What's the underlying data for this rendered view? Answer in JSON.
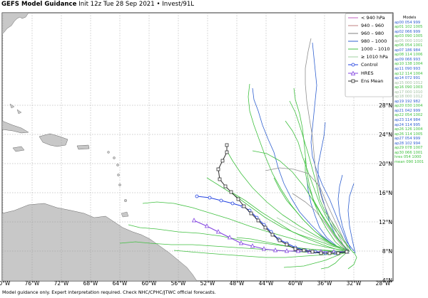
{
  "title": {
    "bold": "GEFS Model Guidance",
    "rest": "Init 12z Tue 28 Sep 2021 • Invest/91L"
  },
  "footer": "Model guidance only. Expert interpretation required. Check NHC/CPHC/JTWC official forecasts.",
  "lat_labels": [
    "28°N",
    "24°N",
    "20°N",
    "16°N",
    "12°N",
    "8°N",
    "4°N"
  ],
  "lon_labels": [
    "80°W",
    "76°W",
    "72°W",
    "68°W",
    "64°W",
    "60°W",
    "56°W",
    "52°W",
    "48°W",
    "44°W",
    "40°W",
    "36°W",
    "32°W",
    "28°W"
  ],
  "legend": {
    "intensity": [
      {
        "label": "< 940 hPa",
        "color": "#c060c0"
      },
      {
        "label": "940 – 960",
        "color": "#c08080"
      },
      {
        "label": "960 – 980",
        "color": "#808080"
      },
      {
        "label": "980 – 1000",
        "color": "#3060d0"
      },
      {
        "label": "1000 – 1010",
        "color": "#40c040"
      },
      {
        "label": "≥ 1010 hPa",
        "color": "#a0d0a0"
      }
    ],
    "control": {
      "label": "Control",
      "color": "#2040e0"
    },
    "hres": {
      "label": "HRES",
      "color": "#8040e0"
    },
    "ens_mean": {
      "label": "Ens Mean",
      "color": "#303030"
    }
  },
  "members_header": "Models",
  "members": [
    {
      "text": "ap00 054 999",
      "color": "#3060d0"
    },
    {
      "text": "ap01 102 1005",
      "color": "#40c040"
    },
    {
      "text": "ap02 066 999",
      "color": "#3060d0"
    },
    {
      "text": "ap03 090 1005",
      "color": "#40c040"
    },
    {
      "text": "ap05 000 1010",
      "color": "#a0c0a0"
    },
    {
      "text": "ap06 054 1001",
      "color": "#40c040"
    },
    {
      "text": "ap07 186 984",
      "color": "#3060d0"
    },
    {
      "text": "ap08 114 1006",
      "color": "#40c040"
    },
    {
      "text": "ap09 066 993",
      "color": "#3060d0"
    },
    {
      "text": "ap10 138 1004",
      "color": "#40c040"
    },
    {
      "text": "ap11 090 993",
      "color": "#3060d0"
    },
    {
      "text": "ap12 114 1004",
      "color": "#40c040"
    },
    {
      "text": "ap14 072 991",
      "color": "#3060d0"
    },
    {
      "text": "ap15 000 1012",
      "color": "#a0c0a0"
    },
    {
      "text": "ap16 090 1003",
      "color": "#40c040"
    },
    {
      "text": "ap17 000 1010",
      "color": "#a0c0a0"
    },
    {
      "text": "ap18 000 1012",
      "color": "#a0c0a0"
    },
    {
      "text": "ap19 192 982",
      "color": "#3060d0"
    },
    {
      "text": "ap20 030 1004",
      "color": "#40c040"
    },
    {
      "text": "ap21 042 999",
      "color": "#3060d0"
    },
    {
      "text": "ap22 054 1002",
      "color": "#40c040"
    },
    {
      "text": "ap23 114 984",
      "color": "#3060d0"
    },
    {
      "text": "ap24 114 995",
      "color": "#3060d0"
    },
    {
      "text": "ap26 126 1004",
      "color": "#40c040"
    },
    {
      "text": "ap26 114 1005",
      "color": "#40c040"
    },
    {
      "text": "ap27 054 999",
      "color": "#3060d0"
    },
    {
      "text": "ap28 102 994",
      "color": "#3060d0"
    },
    {
      "text": "ap29 078 1007",
      "color": "#40c040"
    },
    {
      "text": "ap30 066 1001",
      "color": "#40c040"
    },
    {
      "text": "hres 054 1000",
      "color": "#40c040"
    },
    {
      "text": "mean 090 1001",
      "color": "#40c040"
    }
  ]
}
